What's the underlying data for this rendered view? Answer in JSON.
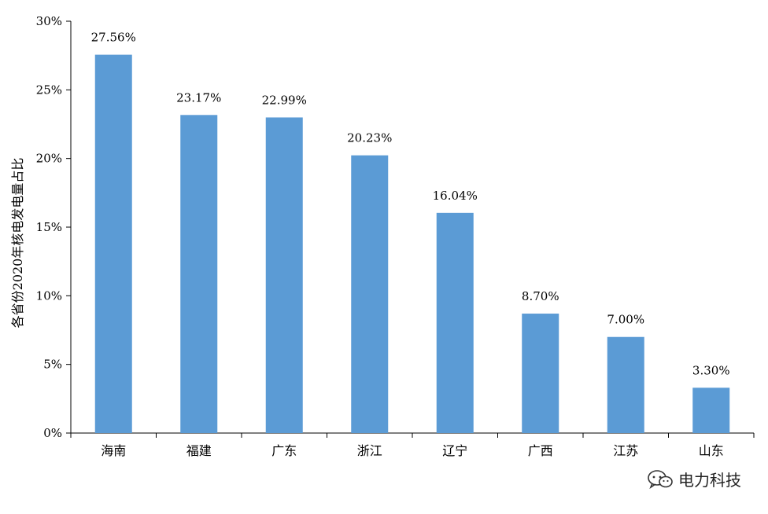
{
  "chart_data": {
    "type": "bar",
    "title": "",
    "xlabel": "",
    "ylabel": "各省份2020年核电发电量占比",
    "categories": [
      "海南",
      "福建",
      "广东",
      "浙江",
      "辽宁",
      "广西",
      "江苏",
      "山东"
    ],
    "values": [
      27.56,
      23.17,
      22.99,
      20.23,
      16.04,
      8.7,
      7.0,
      3.3
    ],
    "value_labels": [
      "27.56%",
      "23.17%",
      "22.99%",
      "20.23%",
      "16.04%",
      "8.70%",
      "7.00%",
      "3.30%"
    ],
    "ylim": [
      0,
      30
    ],
    "yticks": [
      0,
      5,
      10,
      15,
      20,
      25,
      30
    ],
    "ytick_labels": [
      "0%",
      "5%",
      "10%",
      "15%",
      "20%",
      "25%",
      "30%"
    ],
    "grid": false,
    "bar_color": "#5b9bd5"
  },
  "watermark": {
    "text": "电力科技",
    "icon": "wechat-icon"
  }
}
